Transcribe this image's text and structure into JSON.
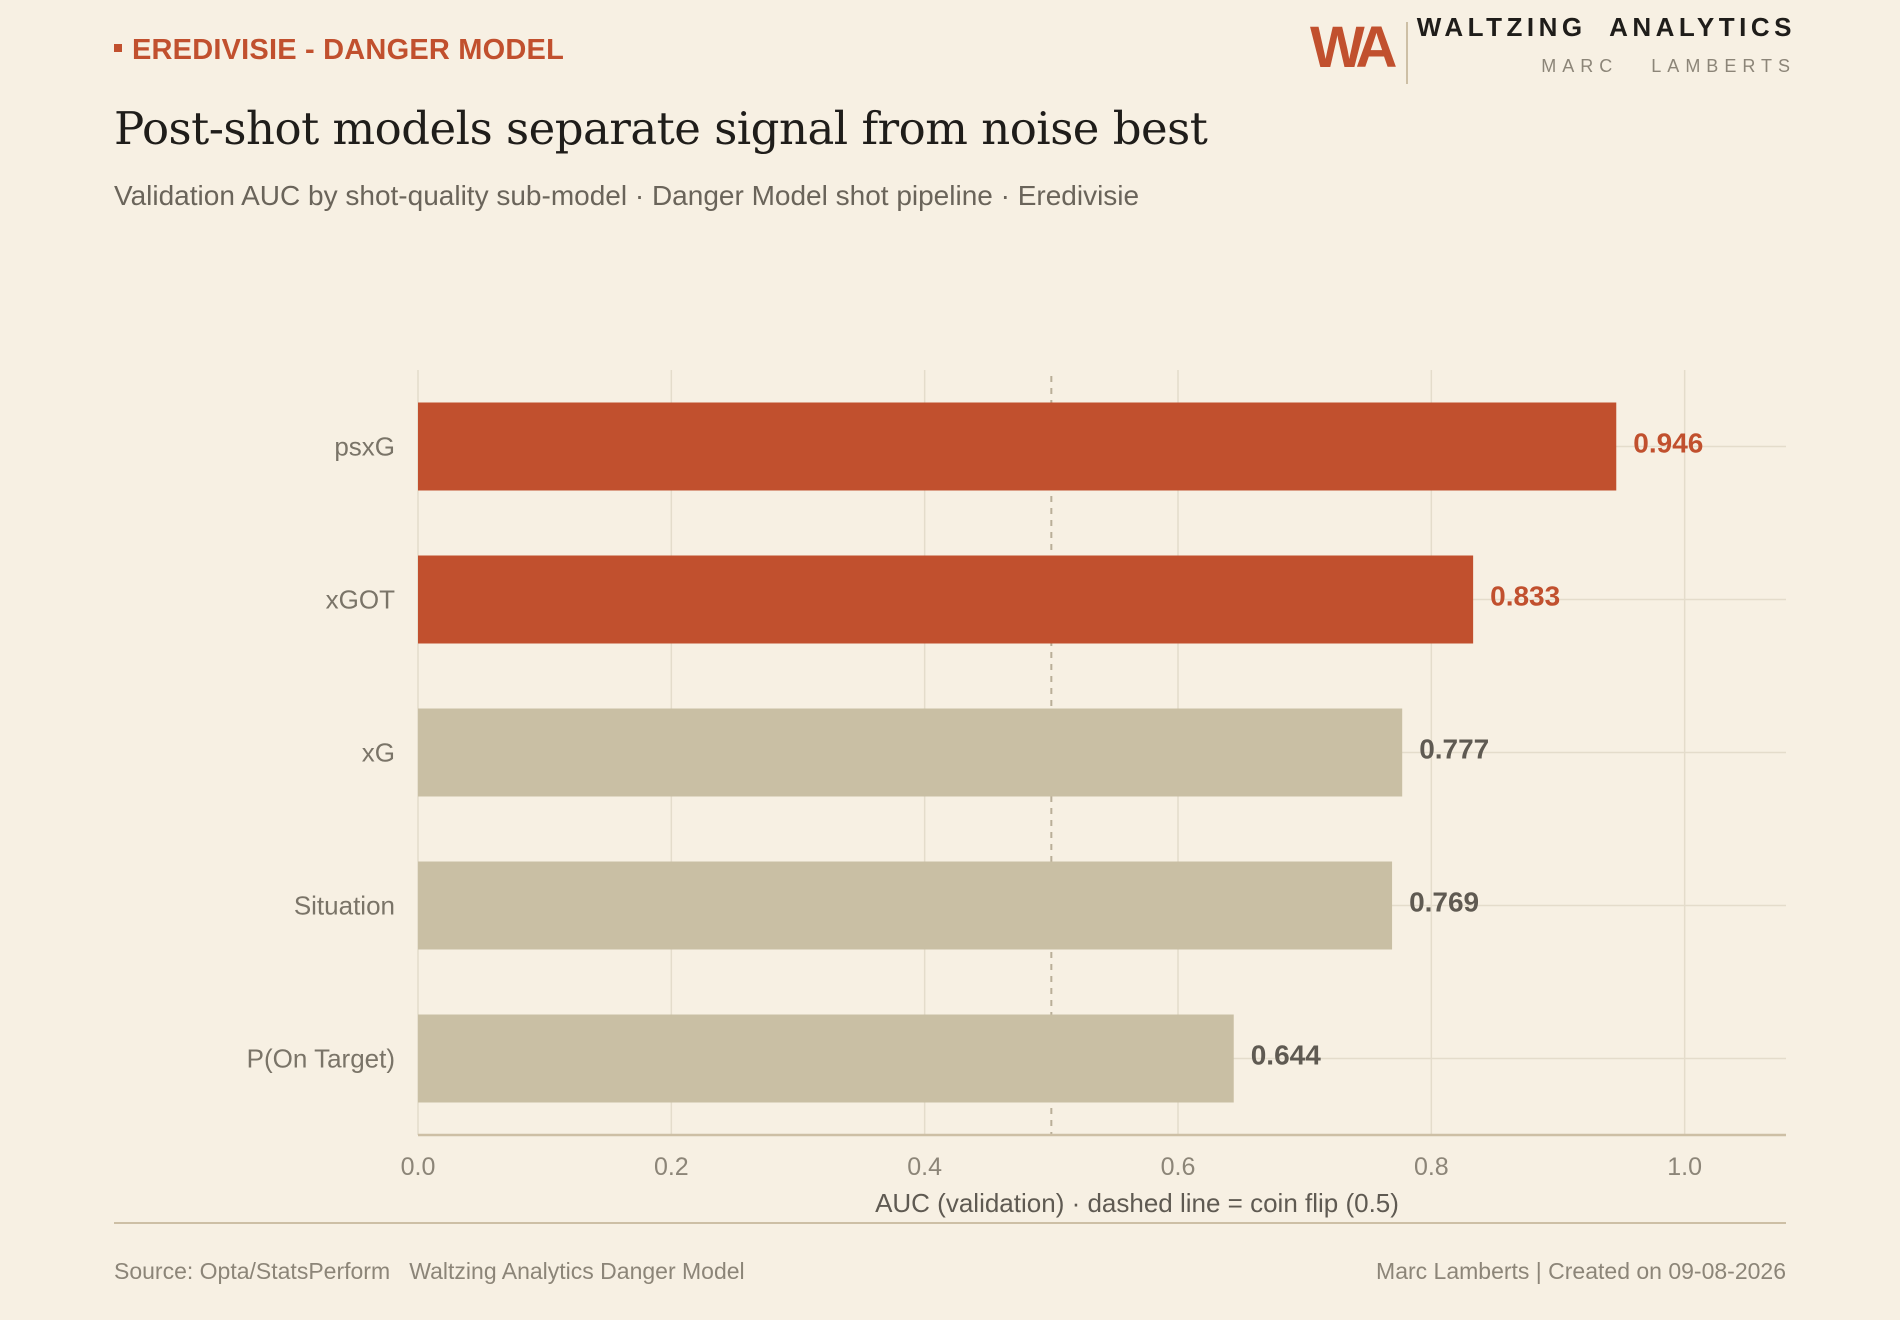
{
  "header": {
    "kicker": "EREDIVISIE - DANGER MODEL",
    "title": "Post-shot models separate signal from noise best",
    "subtitle": "Validation AUC by shot-quality sub-model  ·  Danger Model shot pipeline  ·  Eredivisie"
  },
  "brand": {
    "logo": "WA",
    "name": "WALTZING  ANALYTICS",
    "person": "MARC   LAMBERTS"
  },
  "colors": {
    "background": "#f7f0e3",
    "accent": "#c1502e",
    "muted_bar": "#c9bfa4",
    "muted_label": "#5f5a52",
    "grid": "#e4dccb",
    "axis": "#cdbfa5",
    "text_secondary": "#8c8578"
  },
  "chart_data": {
    "type": "bar",
    "orientation": "horizontal",
    "categories": [
      "psxG",
      "xGOT",
      "xG",
      "Situation",
      "P(On Target)"
    ],
    "values": [
      0.946,
      0.833,
      0.777,
      0.769,
      0.644
    ],
    "value_labels": [
      "0.946",
      "0.833",
      "0.777",
      "0.769",
      "0.644"
    ],
    "highlighted": [
      true,
      true,
      false,
      false,
      false
    ],
    "xlabel": "AUC (validation)  ·  dashed line = coin flip (0.5)",
    "xlim": [
      0,
      1.08
    ],
    "xticks": [
      0.0,
      0.2,
      0.4,
      0.6,
      0.8,
      1.0
    ],
    "xtick_labels": [
      "0.0",
      "0.2",
      "0.4",
      "0.6",
      "0.8",
      "1.0"
    ],
    "reference_line": 0.5,
    "grid": true
  },
  "footer": {
    "source": "Source: Opta/StatsPerform   Waltzing Analytics Danger Model",
    "credit": "Marc Lamberts | Created on 09-08-2026"
  }
}
